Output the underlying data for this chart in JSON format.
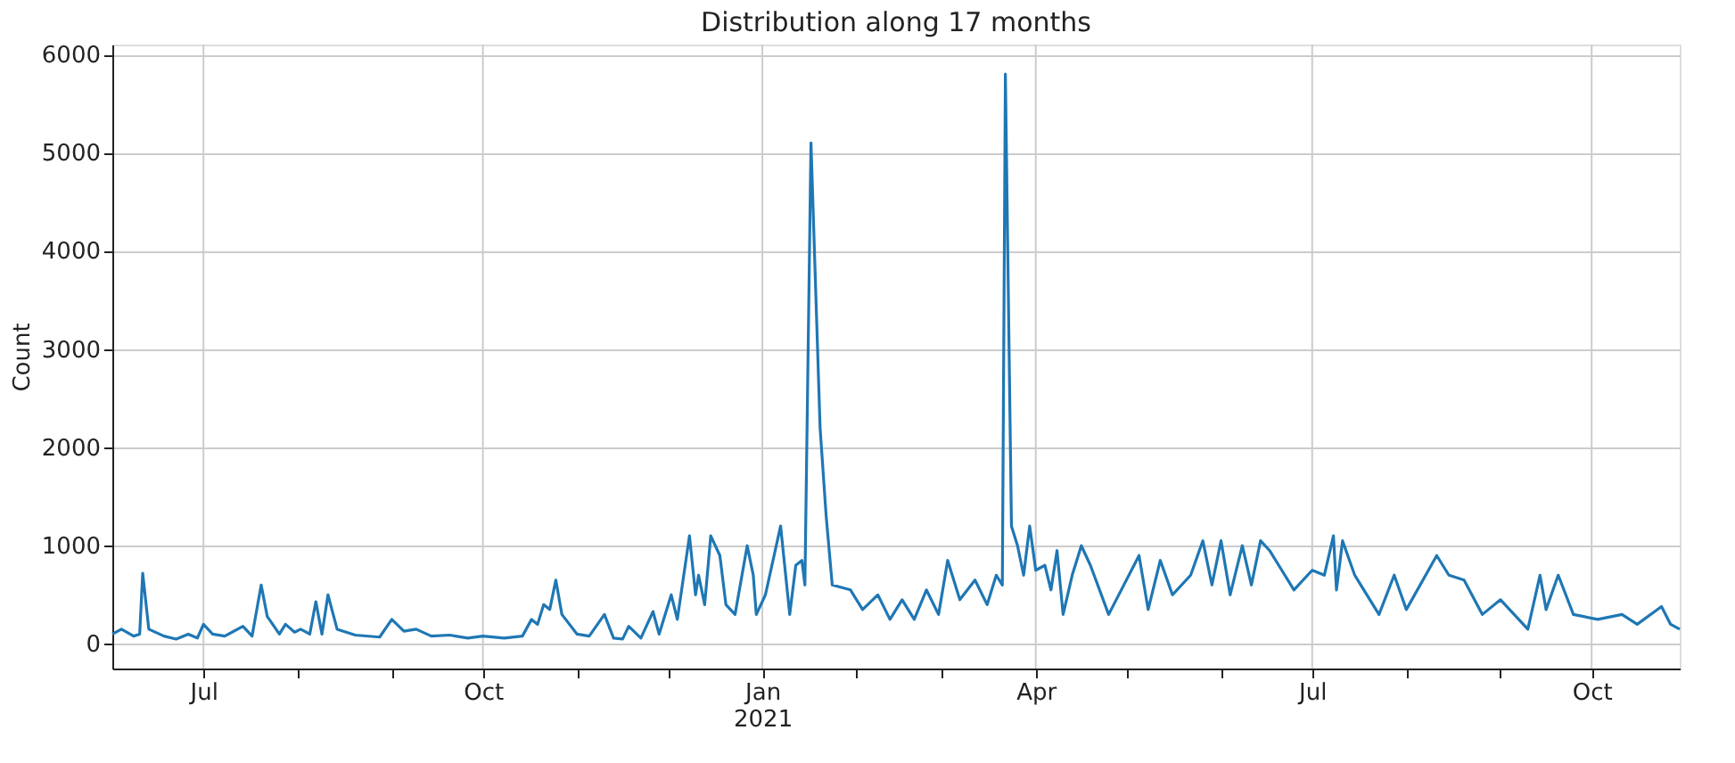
{
  "chart_data": {
    "type": "line",
    "title": "Distribution along 17 months",
    "ylabel": "Count",
    "x": [
      "2020-06-01",
      "2020-06-04",
      "2020-06-08",
      "2020-06-10",
      "2020-06-11",
      "2020-06-13",
      "2020-06-18",
      "2020-06-22",
      "2020-06-26",
      "2020-06-29",
      "2020-07-01",
      "2020-07-04",
      "2020-07-08",
      "2020-07-14",
      "2020-07-17",
      "2020-07-20",
      "2020-07-22",
      "2020-07-26",
      "2020-07-28",
      "2020-07-31",
      "2020-08-02",
      "2020-08-05",
      "2020-08-07",
      "2020-08-09",
      "2020-08-11",
      "2020-08-14",
      "2020-08-20",
      "2020-08-28",
      "2020-09-01",
      "2020-09-05",
      "2020-09-09",
      "2020-09-14",
      "2020-09-20",
      "2020-09-26",
      "2020-10-01",
      "2020-10-08",
      "2020-10-14",
      "2020-10-17",
      "2020-10-19",
      "2020-10-21",
      "2020-10-23",
      "2020-10-25",
      "2020-10-27",
      "2020-11-01",
      "2020-11-05",
      "2020-11-10",
      "2020-11-13",
      "2020-11-16",
      "2020-11-18",
      "2020-11-22",
      "2020-11-26",
      "2020-11-28",
      "2020-12-02",
      "2020-12-04",
      "2020-12-08",
      "2020-12-10",
      "2020-12-11",
      "2020-12-13",
      "2020-12-15",
      "2020-12-18",
      "2020-12-20",
      "2020-12-23",
      "2020-12-27",
      "2020-12-29",
      "2020-12-30",
      "2021-01-02",
      "2021-01-07",
      "2021-01-10",
      "2021-01-12",
      "2021-01-14",
      "2021-01-15",
      "2021-01-17",
      "2021-01-20",
      "2021-01-22",
      "2021-01-24",
      "2021-01-30",
      "2021-02-03",
      "2021-02-08",
      "2021-02-12",
      "2021-02-16",
      "2021-02-20",
      "2021-02-24",
      "2021-02-28",
      "2021-03-03",
      "2021-03-07",
      "2021-03-12",
      "2021-03-16",
      "2021-03-19",
      "2021-03-21",
      "2021-03-22",
      "2021-03-24",
      "2021-03-26",
      "2021-03-28",
      "2021-03-30",
      "2021-04-01",
      "2021-04-04",
      "2021-04-06",
      "2021-04-08",
      "2021-04-10",
      "2021-04-13",
      "2021-04-16",
      "2021-04-19",
      "2021-04-25",
      "2021-05-05",
      "2021-05-08",
      "2021-05-12",
      "2021-05-16",
      "2021-05-22",
      "2021-05-26",
      "2021-05-29",
      "2021-06-01",
      "2021-06-04",
      "2021-06-08",
      "2021-06-11",
      "2021-06-14",
      "2021-06-17",
      "2021-06-20",
      "2021-06-25",
      "2021-07-01",
      "2021-07-05",
      "2021-07-08",
      "2021-07-09",
      "2021-07-11",
      "2021-07-15",
      "2021-07-23",
      "2021-07-28",
      "2021-08-01",
      "2021-08-11",
      "2021-08-15",
      "2021-08-20",
      "2021-08-26",
      "2021-09-01",
      "2021-09-10",
      "2021-09-14",
      "2021-09-16",
      "2021-09-20",
      "2021-09-25",
      "2021-10-03",
      "2021-10-11",
      "2021-10-16",
      "2021-10-24",
      "2021-10-27",
      "2021-10-30"
    ],
    "series": [
      {
        "color": "#1f77b4",
        "values": [
          100,
          150,
          80,
          100,
          720,
          150,
          80,
          50,
          100,
          60,
          200,
          100,
          80,
          180,
          80,
          600,
          280,
          100,
          200,
          120,
          150,
          100,
          430,
          100,
          500,
          150,
          90,
          70,
          250,
          130,
          150,
          80,
          90,
          60,
          80,
          60,
          80,
          250,
          200,
          400,
          350,
          650,
          300,
          100,
          80,
          300,
          60,
          50,
          180,
          60,
          330,
          100,
          500,
          250,
          1100,
          500,
          700,
          400,
          1100,
          900,
          400,
          300,
          1000,
          700,
          300,
          500,
          1200,
          300,
          800,
          850,
          600,
          5100,
          2200,
          1300,
          600,
          550,
          350,
          500,
          250,
          450,
          250,
          550,
          300,
          850,
          450,
          650,
          400,
          700,
          600,
          5800,
          1200,
          1000,
          700,
          1200,
          750,
          800,
          550,
          950,
          300,
          700,
          1000,
          800,
          300,
          900,
          350,
          850,
          500,
          700,
          1050,
          600,
          1050,
          500,
          1000,
          600,
          1050,
          950,
          800,
          550,
          750,
          700,
          1100,
          550,
          1050,
          700,
          300,
          700,
          350,
          900,
          700,
          650,
          300,
          450,
          150,
          700,
          350,
          700,
          300,
          250,
          300,
          200,
          380,
          200,
          150
        ]
      }
    ],
    "xlim": [
      "2020-06-01",
      "2021-10-30"
    ],
    "xticks": [
      {
        "value": "2020-07-01",
        "label": "Jul"
      },
      {
        "value": "2020-08-01",
        "label": null
      },
      {
        "value": "2020-09-01",
        "label": null
      },
      {
        "value": "2020-10-01",
        "label": "Oct"
      },
      {
        "value": "2020-11-01",
        "label": null
      },
      {
        "value": "2020-12-01",
        "label": null
      },
      {
        "value": "2021-01-01",
        "label": "Jan\n2021"
      },
      {
        "value": "2021-02-01",
        "label": null
      },
      {
        "value": "2021-03-01",
        "label": null
      },
      {
        "value": "2021-04-01",
        "label": "Apr"
      },
      {
        "value": "2021-05-01",
        "label": null
      },
      {
        "value": "2021-06-01",
        "label": null
      },
      {
        "value": "2021-07-01",
        "label": "Jul"
      },
      {
        "value": "2021-08-01",
        "label": null
      },
      {
        "value": "2021-09-01",
        "label": null
      },
      {
        "value": "2021-10-01",
        "label": "Oct"
      }
    ],
    "ylim": [
      -250,
      6100
    ],
    "yticks": [
      0,
      1000,
      2000,
      3000,
      4000,
      5000,
      6000
    ],
    "grid": true,
    "marker": "none",
    "line_style": "solid"
  }
}
